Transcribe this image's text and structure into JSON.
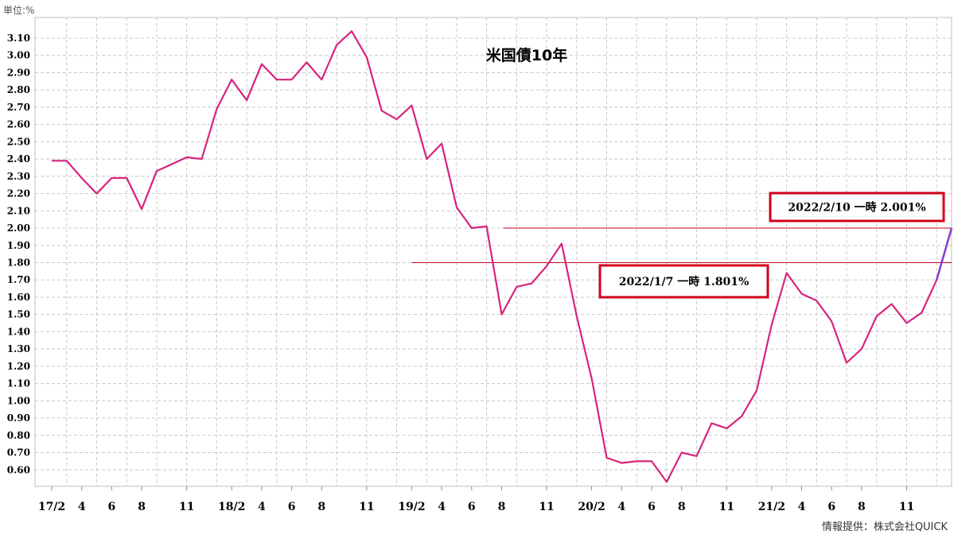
{
  "unit_label": "単位:%",
  "credit": "情報提供：株式会社QUICK",
  "colors": {
    "line": "#d6247d",
    "latest": "#8a3fd1",
    "ref_line": "#c0002a",
    "box_border": "#d0021b",
    "grid": "#c8c8c8"
  },
  "chart_data": {
    "type": "line",
    "title": "米国債10年",
    "ylim": [
      0.5,
      3.2
    ],
    "yticks": [
      "3.10",
      "3.00",
      "2.90",
      "2.80",
      "2.70",
      "2.60",
      "2.50",
      "2.40",
      "2.30",
      "2.20",
      "2.10",
      "2.00",
      "1.90",
      "1.80",
      "1.70",
      "1.60",
      "1.50",
      "1.40",
      "1.30",
      "1.20",
      "1.10",
      "1.00",
      "0.90",
      "0.80",
      "0.70",
      "0.60"
    ],
    "ytick_values": [
      3.1,
      3.0,
      2.9,
      2.8,
      2.7,
      2.6,
      2.5,
      2.4,
      2.3,
      2.2,
      2.1,
      2.0,
      1.9,
      1.8,
      1.7,
      1.6,
      1.5,
      1.4,
      1.3,
      1.2,
      1.1,
      1.0,
      0.9,
      0.8,
      0.7,
      0.6
    ],
    "grid": true,
    "x_ticks": [
      {
        "label": "17/2",
        "pos": 0
      },
      {
        "label": "4",
        "pos": 2
      },
      {
        "label": "6",
        "pos": 4
      },
      {
        "label": "8",
        "pos": 6
      },
      {
        "label": "11",
        "pos": 9
      },
      {
        "label": "18/2",
        "pos": 12
      },
      {
        "label": "4",
        "pos": 14
      },
      {
        "label": "6",
        "pos": 16
      },
      {
        "label": "8",
        "pos": 18
      },
      {
        "label": "11",
        "pos": 21
      },
      {
        "label": "19/2",
        "pos": 24
      },
      {
        "label": "4",
        "pos": 26
      },
      {
        "label": "6",
        "pos": 28
      },
      {
        "label": "8",
        "pos": 30
      },
      {
        "label": "11",
        "pos": 33
      },
      {
        "label": "20/2",
        "pos": 36
      },
      {
        "label": "4",
        "pos": 38
      },
      {
        "label": "6",
        "pos": 40
      },
      {
        "label": "8",
        "pos": 42
      },
      {
        "label": "11",
        "pos": 45
      },
      {
        "label": "21/2",
        "pos": 48
      },
      {
        "label": "4",
        "pos": 50
      },
      {
        "label": "6",
        "pos": 52
      },
      {
        "label": "8",
        "pos": 54
      },
      {
        "label": "11",
        "pos": 57
      }
    ],
    "x_max": 60,
    "series": [
      {
        "values": [
          2.39,
          2.39,
          2.29,
          2.2,
          2.29,
          2.29,
          2.11,
          2.33,
          2.37,
          2.41,
          2.4,
          2.69,
          2.86,
          2.74,
          2.95,
          2.86,
          2.86,
          2.96,
          2.86,
          3.06,
          3.14,
          2.99,
          2.68,
          2.63,
          2.71,
          2.4,
          2.49,
          2.12,
          2.0,
          2.01,
          1.5,
          1.66,
          1.68,
          1.78,
          1.91,
          1.49,
          1.13,
          0.67,
          0.64,
          0.65,
          0.65,
          0.53,
          0.7,
          0.68,
          0.87,
          0.84,
          0.91,
          1.06,
          1.44,
          1.74,
          1.62,
          1.58,
          1.46,
          1.22,
          1.3,
          1.49,
          1.56,
          1.45,
          1.51,
          1.7
        ]
      },
      {
        "segment": "latest",
        "x": [
          59,
          60
        ],
        "values": [
          1.7,
          2.0
        ]
      }
    ],
    "reference_lines": [
      {
        "value": 2.0,
        "x_from": 30.1,
        "x_to": 60
      },
      {
        "value": 1.8,
        "x_from": 24.0,
        "x_to": 60
      }
    ],
    "annotations": [
      {
        "text": "2022/2/10 一時 2.001%",
        "ref": 0
      },
      {
        "text": "2022/1/7 一時 1.801%",
        "ref": 1
      }
    ]
  }
}
